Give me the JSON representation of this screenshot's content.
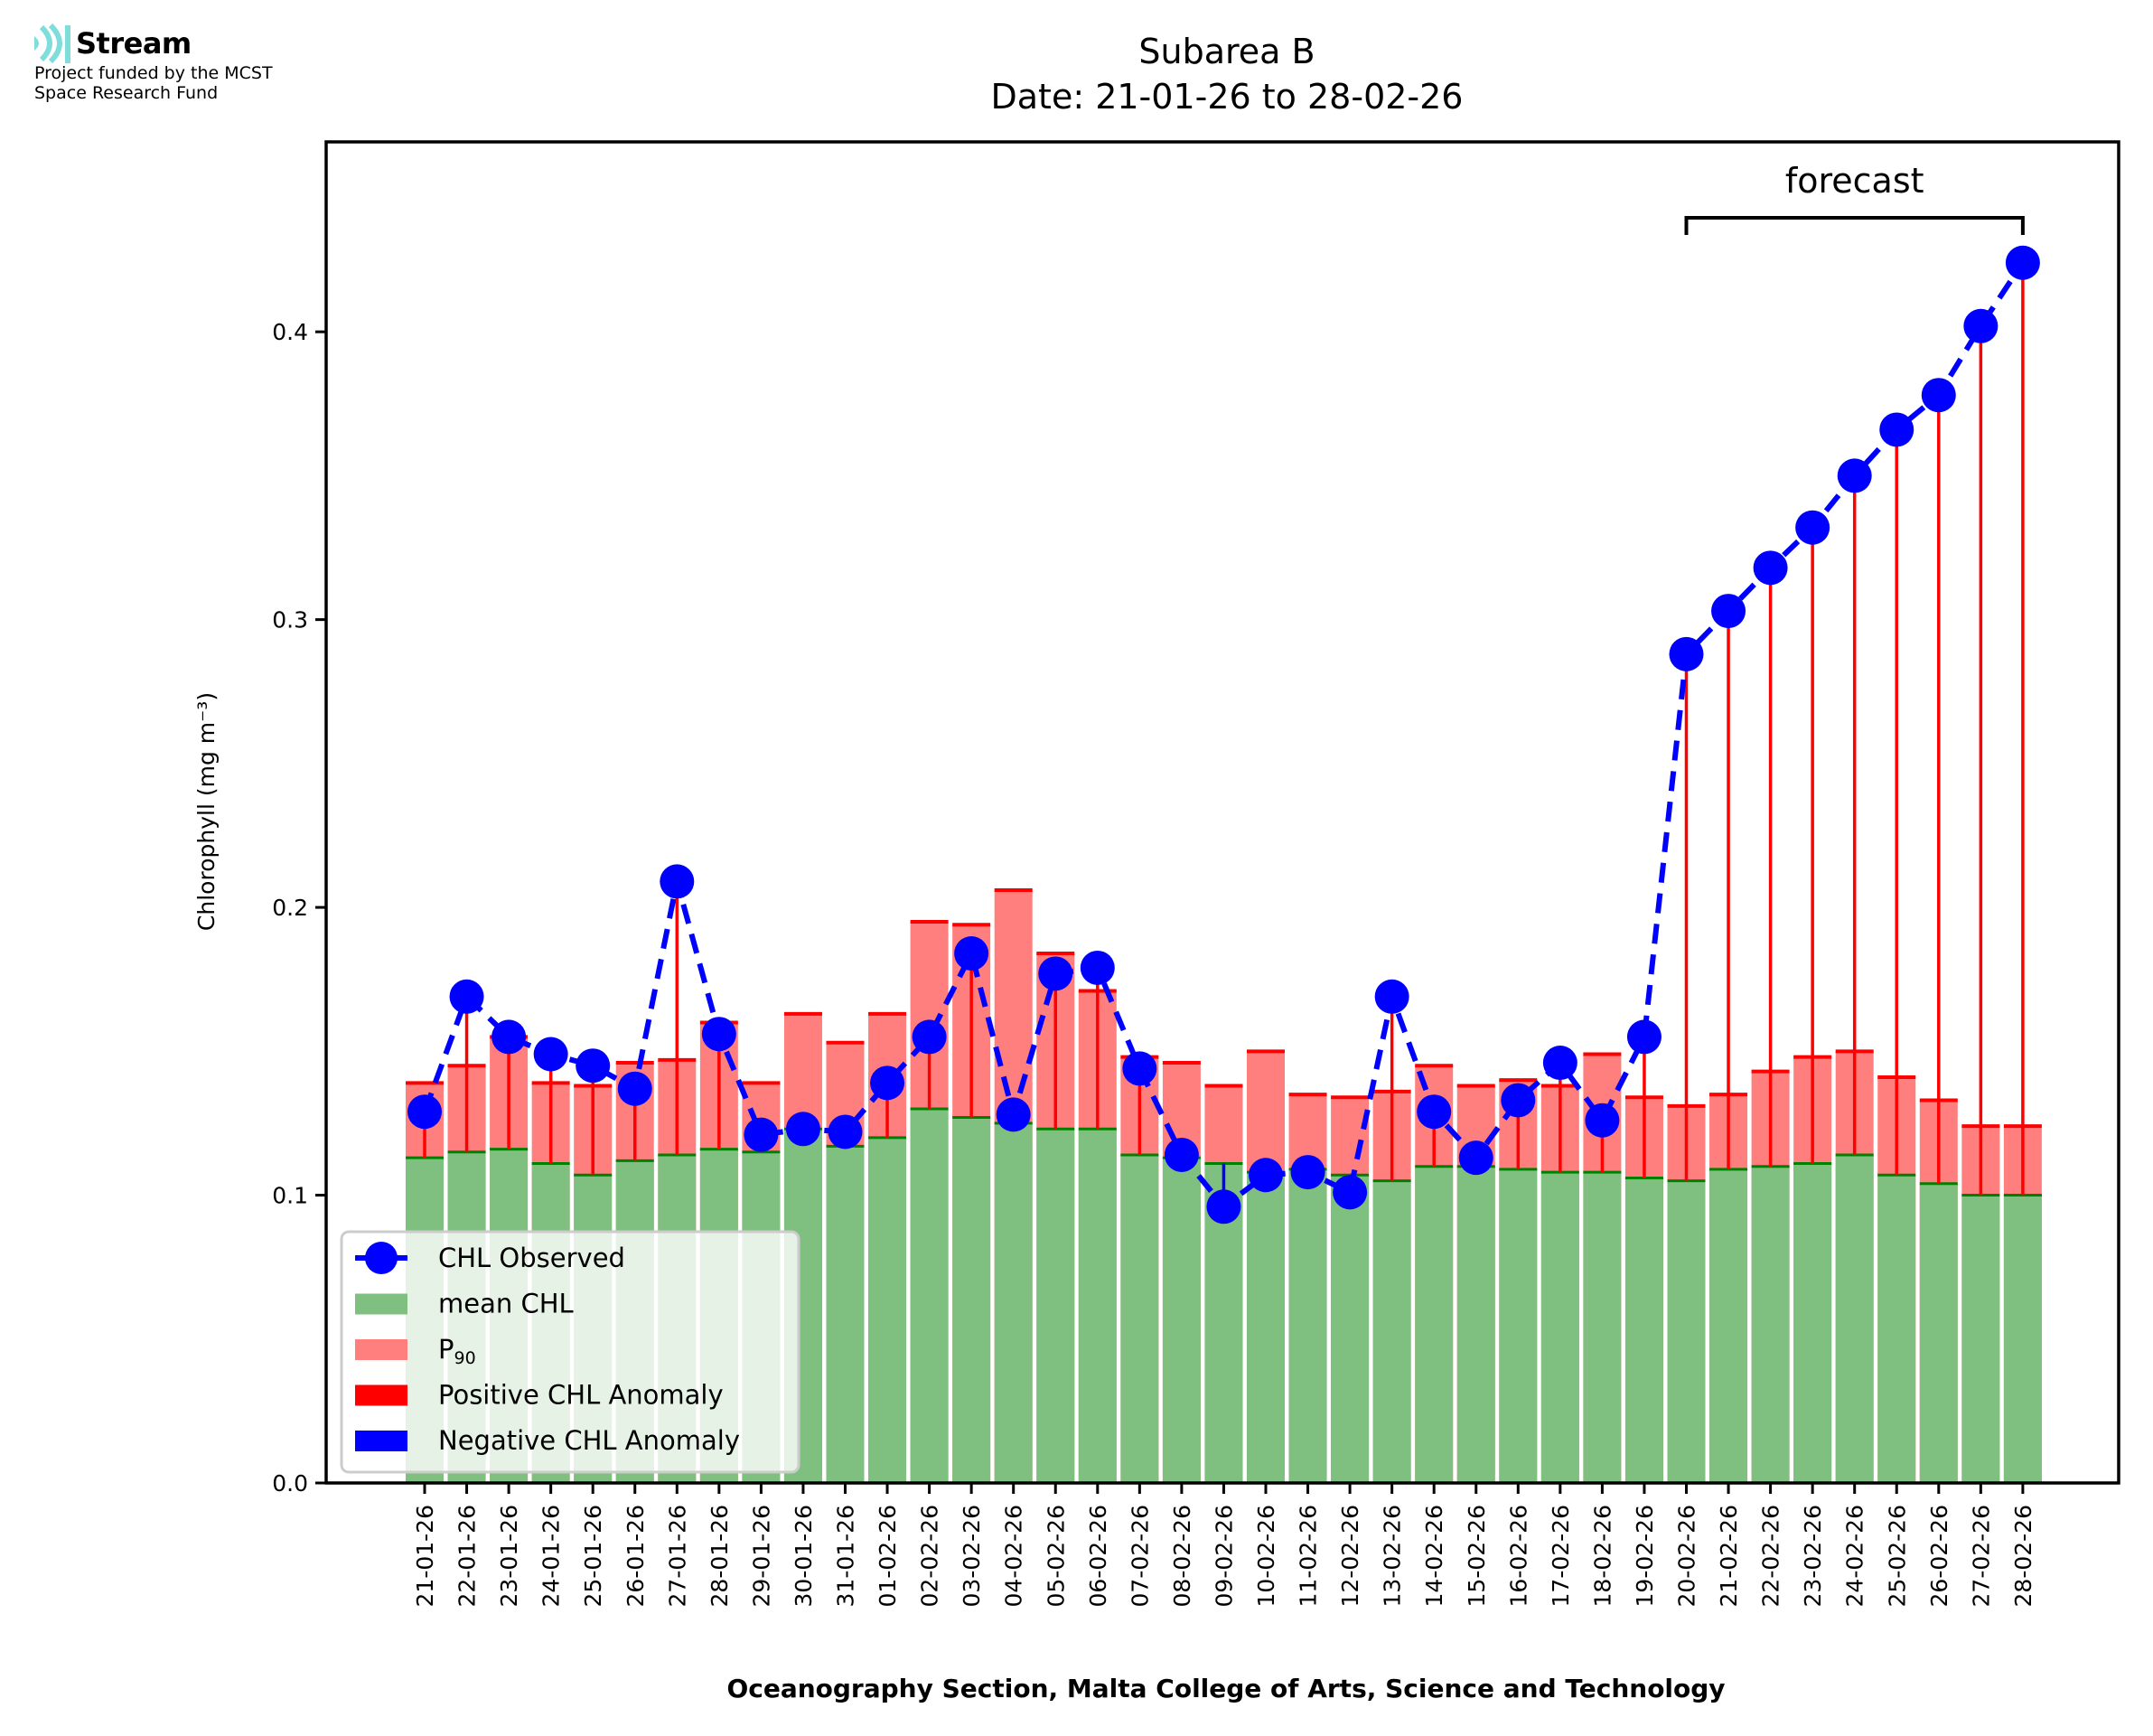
{
  "logo": {
    "name": "Stream",
    "line1": "Project funded by the MCST",
    "line2": "Space Research Fund",
    "accent": "#7fdedb"
  },
  "colors": {
    "observed": "#0000ff",
    "mean_fill": "#7fbf7f",
    "mean_edge": "#008000",
    "p90_fill": "#ff7f7f",
    "p90_edge": "#ff0000",
    "positive_anomaly": "#ff0000",
    "negative_anomaly": "#0000ff"
  },
  "chart_data": {
    "type": "bar",
    "title": "Subarea B",
    "subtitle": "Date: 21-01-26 to 28-02-26",
    "xlabel": "Oceanography Section, Malta College of Arts, Science and Technology",
    "ylabel": "Chlorophyll (mg m⁻³)",
    "ylim": [
      0.0,
      0.466
    ],
    "yticks": [
      0.0,
      0.1,
      0.2,
      0.3,
      0.4
    ],
    "ytick_labels": [
      "0.0",
      "0.1",
      "0.2",
      "0.3",
      "0.4"
    ],
    "grid": false,
    "legend_position": "lower-left",
    "legend": [
      {
        "label": "CHL Observed",
        "kind": "line-marker",
        "color": "#0000ff"
      },
      {
        "label": "mean CHL",
        "kind": "patch",
        "color": "#7fbf7f"
      },
      {
        "label": "P",
        "sub": "90",
        "kind": "patch",
        "color": "#ff7f7f"
      },
      {
        "label": "Positive CHL Anomaly",
        "kind": "patch",
        "color": "#ff0000"
      },
      {
        "label": "Negative CHL Anomaly",
        "kind": "patch",
        "color": "#0000ff"
      }
    ],
    "annotation": {
      "text": "forecast",
      "from": "20-02-26",
      "to": "28-02-26"
    },
    "categories": [
      "21-01-26",
      "22-01-26",
      "23-01-26",
      "24-01-26",
      "25-01-26",
      "26-01-26",
      "27-01-26",
      "28-01-26",
      "29-01-26",
      "30-01-26",
      "31-01-26",
      "01-02-26",
      "02-02-26",
      "03-02-26",
      "04-02-26",
      "05-02-26",
      "06-02-26",
      "07-02-26",
      "08-02-26",
      "09-02-26",
      "10-02-26",
      "11-02-26",
      "12-02-26",
      "13-02-26",
      "14-02-26",
      "15-02-26",
      "16-02-26",
      "17-02-26",
      "18-02-26",
      "19-02-26",
      "20-02-26",
      "21-02-26",
      "22-02-26",
      "23-02-26",
      "24-02-26",
      "25-02-26",
      "26-02-26",
      "27-02-26",
      "28-02-26"
    ],
    "series": [
      {
        "name": "CHL Observed",
        "type": "line",
        "values": [
          0.129,
          0.169,
          0.155,
          0.149,
          0.145,
          0.137,
          0.209,
          0.156,
          0.121,
          0.123,
          0.122,
          0.139,
          0.155,
          0.184,
          0.128,
          0.177,
          0.179,
          0.144,
          0.114,
          0.096,
          0.107,
          0.108,
          0.101,
          0.169,
          0.129,
          0.113,
          0.133,
          0.146,
          0.126,
          0.155,
          0.288,
          0.303,
          0.318,
          0.332,
          0.35,
          0.366,
          0.378,
          0.402,
          0.424
        ]
      },
      {
        "name": "mean CHL",
        "type": "bar",
        "values": [
          0.113,
          0.115,
          0.116,
          0.111,
          0.107,
          0.112,
          0.114,
          0.116,
          0.115,
          0.123,
          0.117,
          0.12,
          0.13,
          0.127,
          0.125,
          0.123,
          0.123,
          0.114,
          0.113,
          0.111,
          0.108,
          0.109,
          0.107,
          0.105,
          0.11,
          0.11,
          0.109,
          0.108,
          0.108,
          0.106,
          0.105,
          0.109,
          0.11,
          0.111,
          0.114,
          0.107,
          0.104,
          0.1,
          0.1
        ]
      },
      {
        "name": "P90",
        "type": "bar",
        "values": [
          0.139,
          0.145,
          0.155,
          0.139,
          0.138,
          0.146,
          0.147,
          0.16,
          0.139,
          0.163,
          0.153,
          0.163,
          0.195,
          0.194,
          0.206,
          0.184,
          0.171,
          0.148,
          0.146,
          0.138,
          0.15,
          0.135,
          0.134,
          0.136,
          0.145,
          0.138,
          0.14,
          0.138,
          0.149,
          0.134,
          0.131,
          0.135,
          0.143,
          0.148,
          0.15,
          0.141,
          0.133,
          0.124,
          0.124
        ]
      }
    ]
  }
}
